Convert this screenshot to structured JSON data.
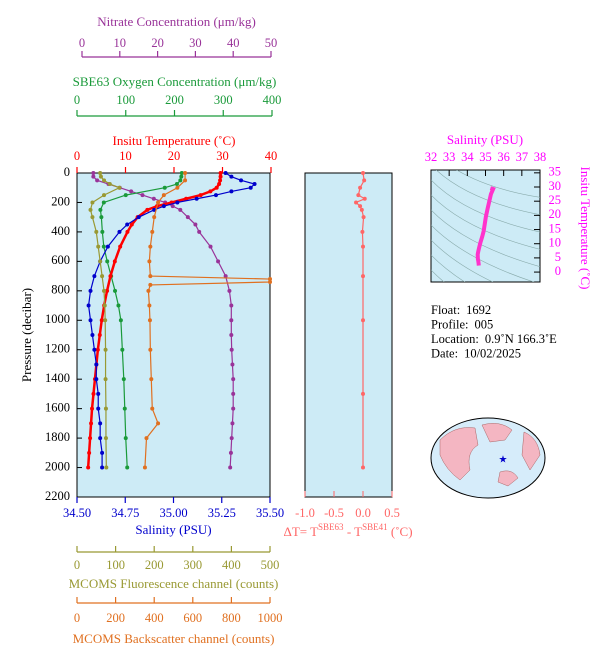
{
  "chart_data": [
    {
      "type": "profile",
      "ylabel": "Pressure (decibar)",
      "ylim": [
        0,
        2200
      ],
      "yticks": [
        0,
        200,
        400,
        600,
        800,
        1000,
        1200,
        1400,
        1600,
        1800,
        2000,
        2200
      ],
      "axes": [
        {
          "label": "Nitrate Concentration (μm/kg)",
          "color": "#993399",
          "xlim": [
            0,
            50
          ],
          "xticks": [
            0,
            10,
            20,
            30,
            40,
            50
          ],
          "pressure": [
            0,
            25,
            50,
            75,
            100,
            125,
            150,
            175,
            200,
            225,
            250,
            300,
            350,
            400,
            500,
            600,
            700,
            800,
            900,
            1000,
            1100,
            1200,
            1300,
            1400,
            1500,
            1600,
            1700,
            1800,
            1900,
            2000
          ],
          "values": [
            3,
            3,
            4,
            7,
            10,
            13,
            16,
            19,
            22,
            24,
            26,
            28,
            30,
            31,
            34,
            36,
            38,
            39,
            39.5,
            39.5,
            39.5,
            39.6,
            39.8,
            40,
            40,
            40,
            39.8,
            39.6,
            39.4,
            39.2
          ]
        },
        {
          "label": "SBE63 Oxygen Concentration (μm/kg)",
          "color": "#1a9a3a",
          "xlim": [
            0,
            400
          ],
          "xticks": [
            0,
            100,
            200,
            300,
            400
          ],
          "pressure": [
            0,
            25,
            50,
            75,
            100,
            150,
            200,
            250,
            300,
            400,
            500,
            600,
            700,
            800,
            900,
            1000,
            1200,
            1400,
            1600,
            1800,
            2000
          ],
          "values": [
            215,
            214,
            212,
            205,
            180,
            100,
            55,
            48,
            50,
            52,
            55,
            62,
            70,
            78,
            85,
            90,
            93,
            96,
            98,
            100,
            103
          ]
        },
        {
          "label": "Insitu Temperature (˚C)",
          "color": "#ff0000",
          "xlim": [
            0,
            40
          ],
          "xticks": [
            0,
            10,
            20,
            30,
            40
          ],
          "pressure": [
            0,
            25,
            50,
            75,
            100,
            125,
            150,
            175,
            200,
            225,
            250,
            300,
            350,
            400,
            500,
            600,
            700,
            800,
            900,
            1000,
            1100,
            1200,
            1300,
            1400,
            1500,
            1600,
            1700,
            1800,
            1900,
            2000
          ],
          "values": [
            29.6,
            29.6,
            29.5,
            29.3,
            28.8,
            27.5,
            25.5,
            22.5,
            19.5,
            16.5,
            14.5,
            12.5,
            11.3,
            10.4,
            8.9,
            7.8,
            6.9,
            6.2,
            5.6,
            5.1,
            4.7,
            4.3,
            4.0,
            3.7,
            3.4,
            3.1,
            2.9,
            2.7,
            2.5,
            2.3
          ]
        },
        {
          "label": "Salinity (PSU)",
          "color": "#0000cc",
          "xlim": [
            34.5,
            35.5
          ],
          "xticks": [
            {
              "value": 34.5,
              "label": "34.50"
            },
            {
              "value": 34.75,
              "label": "34.75"
            },
            {
              "value": 35,
              "label": "35.00"
            },
            {
              "value": 35.25,
              "label": "35.25"
            },
            {
              "value": 35.5,
              "label": "35.50"
            }
          ],
          "pressure": [
            0,
            25,
            50,
            75,
            100,
            125,
            150,
            175,
            200,
            225,
            250,
            300,
            350,
            400,
            500,
            600,
            700,
            800,
            900,
            1000,
            1100,
            1200,
            1300,
            1400,
            1500,
            1600,
            1700,
            1800,
            1900,
            2000
          ],
          "values": [
            35.27,
            35.3,
            35.35,
            35.42,
            35.4,
            35.3,
            35.22,
            35.12,
            35.02,
            34.95,
            34.9,
            34.82,
            34.76,
            34.72,
            34.66,
            34.62,
            34.59,
            34.57,
            34.56,
            34.57,
            34.58,
            34.59,
            34.6,
            34.6,
            34.61,
            34.61,
            34.62,
            34.62,
            34.63,
            34.63
          ]
        },
        {
          "label": "MCOMS Fluorescence channel (counts)",
          "color": "#999933",
          "xlim": [
            0,
            500
          ],
          "xticks": [
            0,
            100,
            200,
            300,
            400,
            500
          ],
          "pressure": [
            0,
            25,
            50,
            75,
            100,
            150,
            200,
            250,
            300,
            400,
            500,
            600,
            700,
            800,
            900,
            1000,
            1200,
            1400,
            1600,
            1800,
            2000
          ],
          "values": [
            60,
            62,
            70,
            85,
            110,
            70,
            40,
            35,
            40,
            50,
            55,
            60,
            65,
            70,
            72,
            73,
            74,
            74,
            75,
            75,
            76
          ]
        },
        {
          "label": "MCOMS Backscatter channel (counts)",
          "color": "#e07020",
          "xlim": [
            0,
            1000
          ],
          "xticks": [
            0,
            200,
            400,
            600,
            800,
            1000
          ],
          "pressure": [
            0,
            50,
            100,
            150,
            200,
            300,
            400,
            500,
            600,
            700,
            720,
            740,
            760,
            800,
            900,
            1000,
            1200,
            1400,
            1600,
            1700,
            1800,
            2000
          ],
          "values": [
            560,
            560,
            520,
            450,
            420,
            400,
            390,
            380,
            375,
            380,
            1000,
            1000,
            380,
            370,
            375,
            378,
            380,
            385,
            390,
            420,
            360,
            352
          ]
        }
      ]
    },
    {
      "type": "delta",
      "color": "#ff6666",
      "xlabel": [
        "ΔT= T",
        "SBE63",
        " - T",
        "SBE41",
        " (˚C)"
      ],
      "xlim": [
        -1,
        0.5
      ],
      "xticks": [
        {
          "value": -1,
          "label": "-1.0"
        },
        {
          "value": -0.5,
          "label": "-0.5"
        },
        {
          "value": 0,
          "label": "0.0"
        },
        0.5
      ],
      "ylim": [
        0,
        2200
      ],
      "pressure": [
        0,
        50,
        100,
        150,
        175,
        200,
        225,
        250,
        300,
        400,
        500,
        700,
        1000,
        1500,
        2000
      ],
      "values": [
        0,
        0.02,
        -0.05,
        -0.08,
        0.03,
        -0.12,
        -0.05,
        -0.02,
        0.01,
        -0.01,
        0,
        0,
        0,
        0,
        0
      ]
    },
    {
      "type": "ts",
      "color": "#ff33cc",
      "axis_color": "#ff00ff",
      "xlabel": "Salinity (PSU)",
      "ylabel": "Insitu Temperature (˚C)",
      "xlim": [
        32,
        38
      ],
      "xticks": [
        32,
        33,
        34,
        35,
        36,
        37,
        38
      ],
      "ylim": [
        -3.5,
        36
      ],
      "yticks": [
        0,
        5,
        10,
        15,
        20,
        25,
        30,
        35
      ],
      "x": [
        35.27,
        35.42,
        35.3,
        35.12,
        35.02,
        34.9,
        34.82,
        34.72,
        34.66,
        34.62,
        34.59,
        34.57,
        34.58,
        34.6,
        34.62,
        34.63
      ],
      "values": [
        29.6,
        29.3,
        27.5,
        22.5,
        19.5,
        14.5,
        12.5,
        10.4,
        8.9,
        7.8,
        6.9,
        6.2,
        4.7,
        4.0,
        3.1,
        2.3
      ]
    }
  ],
  "float_info": [
    {
      "label": "Float:",
      "value": "1692"
    },
    {
      "label": "Profile:",
      "value": "005"
    },
    {
      "label": "Location:",
      "value": "0.9˚N  166.3˚E"
    },
    {
      "label": "Date:",
      "value": "10/02/2025"
    }
  ]
}
